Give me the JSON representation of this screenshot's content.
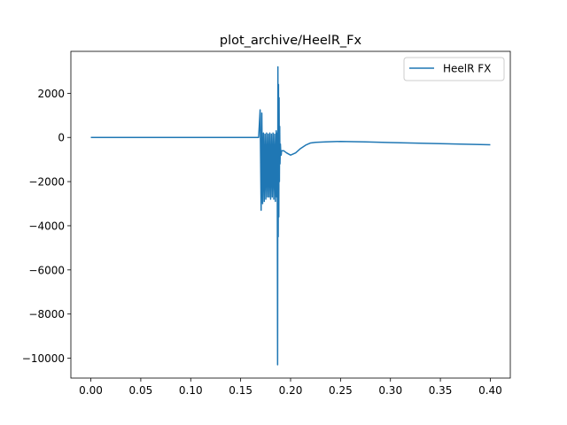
{
  "chart_data": {
    "type": "line",
    "title": "plot_archive/HeelR_Fx",
    "xlabel": "",
    "ylabel": "",
    "xlim": [
      -0.02,
      0.42
    ],
    "ylim": [
      -10900,
      3900
    ],
    "x_ticks": [
      0.0,
      0.05,
      0.1,
      0.15,
      0.2,
      0.25,
      0.3,
      0.35,
      0.4
    ],
    "x_tick_labels": [
      "0.00",
      "0.05",
      "0.10",
      "0.15",
      "0.20",
      "0.25",
      "0.30",
      "0.35",
      "0.40"
    ],
    "y_ticks": [
      -10000,
      -8000,
      -6000,
      -4000,
      -2000,
      0,
      2000
    ],
    "y_tick_labels": [
      "−10000",
      "−8000",
      "−6000",
      "−4000",
      "−2000",
      "0",
      "2000"
    ],
    "grid": false,
    "legend_position": "top-right",
    "series": [
      {
        "name": "HeelR FX",
        "color": "#1f77b4",
        "x": [
          0.0,
          0.05,
          0.1,
          0.15,
          0.168,
          0.1695,
          0.1705,
          0.1712,
          0.172,
          0.1728,
          0.1736,
          0.1744,
          0.1752,
          0.176,
          0.1768,
          0.1776,
          0.1784,
          0.1792,
          0.18,
          0.1808,
          0.1816,
          0.1824,
          0.1832,
          0.184,
          0.1848,
          0.1856,
          0.1862,
          0.1866,
          0.187,
          0.1873,
          0.1876,
          0.1879,
          0.1882,
          0.1885,
          0.1888,
          0.1891,
          0.1894,
          0.1898,
          0.1902,
          0.1906,
          0.191,
          0.193,
          0.196,
          0.2,
          0.205,
          0.21,
          0.215,
          0.22,
          0.225,
          0.235,
          0.25,
          0.275,
          0.3,
          0.35,
          0.4
        ],
        "y": [
          0,
          0,
          0,
          0,
          0,
          1250,
          -3300,
          1100,
          -3000,
          200,
          -2900,
          150,
          -2800,
          200,
          -2700,
          150,
          -2700,
          200,
          -2800,
          150,
          -2700,
          200,
          -2800,
          150,
          -2900,
          300,
          -2700,
          200,
          -10300,
          3200,
          -4500,
          2400,
          -3600,
          1800,
          -2000,
          500,
          -1200,
          -300,
          -700,
          -800,
          -600,
          -600,
          -700,
          -800,
          -700,
          -500,
          -350,
          -250,
          -220,
          -200,
          -180,
          -200,
          -230,
          -280,
          -330
        ]
      }
    ]
  }
}
